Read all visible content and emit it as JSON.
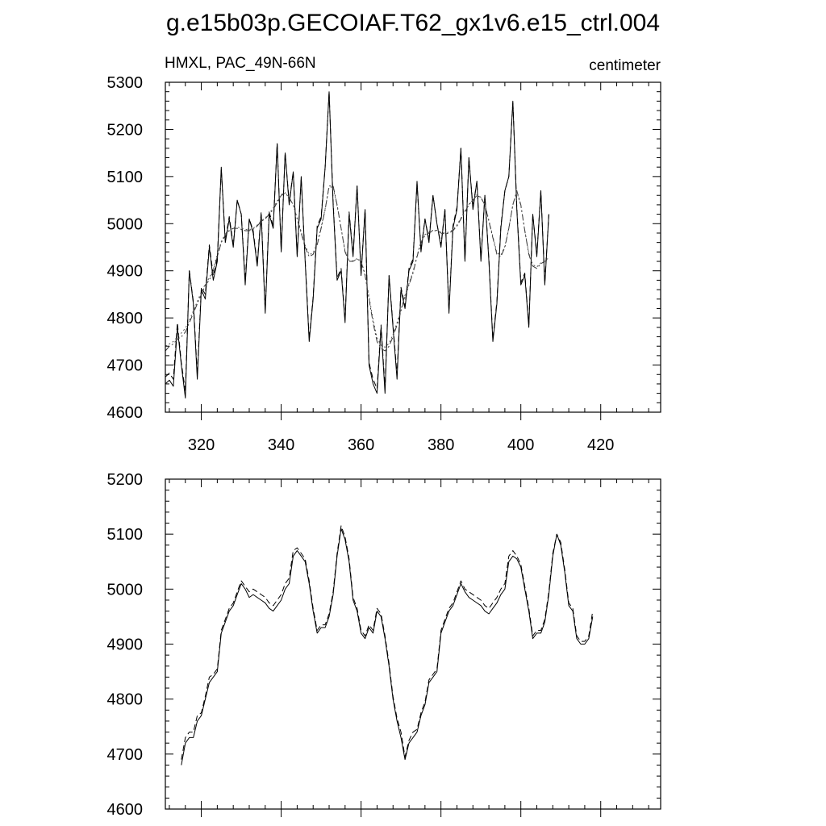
{
  "title": "g.e15b03p.GECOIAF.T62_gx1v6.e15_ctrl.004",
  "chart_data": [
    {
      "type": "line",
      "panel": "top",
      "left_label": "HMXL, PAC_49N-66N",
      "right_label": "centimeter",
      "xlim": [
        311,
        435
      ],
      "ylim": [
        4600,
        5300
      ],
      "xticks": [
        320,
        340,
        360,
        380,
        400,
        420
      ],
      "yticks": [
        4600,
        4700,
        4800,
        4900,
        5000,
        5100,
        5200,
        5300
      ],
      "x_start": 311,
      "series": [
        {
          "style": "solid",
          "color": "#000000",
          "values": [
            4660,
            4668,
            4655,
            4780,
            4700,
            4630,
            4900,
            4830,
            4670,
            4860,
            4840,
            4950,
            4880,
            4920,
            5120,
            4960,
            5010,
            4950,
            5050,
            5020,
            4870,
            5010,
            4980,
            4910,
            5020,
            4810,
            5020,
            4990,
            5170,
            4940,
            5150,
            5040,
            5110,
            4930,
            5100,
            4920,
            4750,
            4840,
            4990,
            5010,
            5120,
            5280,
            5040,
            4880,
            4900,
            4790,
            5020,
            4930,
            5080,
            4890,
            5030,
            4700,
            4660,
            4640,
            4780,
            4640,
            4890,
            4780,
            4670,
            4860,
            4820,
            4900,
            4920,
            5090,
            4940,
            5010,
            4960,
            5060,
            5000,
            4950,
            5030,
            4810,
            4990,
            5030,
            5160,
            4920,
            5140,
            5030,
            5090,
            4920,
            5060,
            4920,
            4750,
            4830,
            4990,
            5070,
            5100,
            5260,
            5030,
            4870,
            4890,
            4780,
            5020,
            4930,
            5070,
            4870,
            5020
          ],
          "offset": 0
        },
        {
          "style": "dashed",
          "color": "#000000",
          "values": [
            4675,
            4683,
            4670,
            4790,
            4705,
            4645,
            4900,
            4835,
            4680,
            4865,
            4850,
            4955,
            4890,
            4925,
            5115,
            4965,
            5015,
            4955,
            5050,
            5020,
            4880,
            5010,
            4985,
            4915,
            5025,
            4815,
            5025,
            4995,
            5170,
            4945,
            5150,
            5045,
            5110,
            4935,
            5095,
            4925,
            4755,
            4845,
            4995,
            5015,
            5120,
            5280,
            5045,
            4885,
            4905,
            4795,
            5025,
            4935,
            5080,
            4895,
            5030,
            4705,
            4670,
            4650,
            4785,
            4650,
            4890,
            4785,
            4680,
            4865,
            4825,
            4905,
            4925,
            5085,
            4945,
            5010,
            4965,
            5060,
            5000,
            4955,
            5030,
            4815,
            4995,
            5035,
            5160,
            4925,
            5140,
            5035,
            5090,
            4925,
            5060,
            4925,
            4755,
            4835,
            4995,
            5070,
            5100,
            5260,
            5035,
            4875,
            4895,
            4785,
            5020,
            4935,
            5070,
            4875,
            5020
          ]
        },
        {
          "style": "dashdot",
          "color": "#333333",
          "values": [
            4730,
            4740,
            4745,
            4755,
            4760,
            4770,
            4790,
            4810,
            4830,
            4850,
            4870,
            4880,
            4900,
            4930,
            4960,
            4975,
            4985,
            4990,
            4990,
            4988,
            4985,
            4985,
            4988,
            4995,
            5005,
            5010,
            5020,
            5030,
            5045,
            5060,
            5065,
            5055,
            5040,
            5010,
            4980,
            4950,
            4930,
            4935,
            4955,
            4990,
            5030,
            5080,
            5080,
            5040,
            4990,
            4940,
            4920,
            4920,
            4925,
            4920,
            4890,
            4840,
            4790,
            4750,
            4735,
            4730,
            4740,
            4760,
            4785,
            4815,
            4845,
            4870,
            4895,
            4930,
            4960,
            4975,
            4980,
            4985,
            4985,
            4980,
            4978,
            4980,
            4985,
            4995,
            5010,
            5025,
            5040,
            5050,
            5060,
            5055,
            5040,
            5005,
            4970,
            4935,
            4930,
            4950,
            4990,
            5040,
            5070,
            5040,
            4985,
            4935,
            4910,
            4905,
            4915,
            4920,
            4925
          ]
        },
        {
          "style": "dotted",
          "color": "#555555",
          "values": [
            4740,
            4745,
            4750,
            4760,
            4768,
            4778,
            4795,
            4815,
            4835,
            4855,
            4872,
            4885,
            4905,
            4935,
            4962,
            4978,
            4988,
            4992,
            4993,
            4990,
            4988,
            4987,
            4990,
            4997,
            5006,
            5012,
            5022,
            5033,
            5048,
            5062,
            5066,
            5056,
            5040,
            5012,
            4983,
            4954,
            4934,
            4938,
            4958,
            4992,
            5032,
            5078,
            5077,
            5038,
            4990,
            4942,
            4922,
            4921,
            4926,
            4921,
            4893,
            4845,
            4797,
            4758,
            4742,
            4738,
            4746,
            4765,
            4790,
            4818,
            4848,
            4873,
            4898,
            4932,
            4962,
            4977,
            4982,
            4986,
            4986,
            4982,
            4980,
            4982,
            4987,
            4997,
            5012,
            5027,
            5041,
            5051,
            5061,
            5056,
            5041,
            5007,
            4973,
            4938,
            4933,
            4952,
            4991,
            5040,
            5068,
            5038,
            4985,
            4937,
            4913,
            4908,
            4917,
            4922,
            4927
          ]
        }
      ]
    },
    {
      "type": "line",
      "panel": "bottom",
      "xlim": [
        311,
        435
      ],
      "ylim": [
        4600,
        5200
      ],
      "xticks": [
        320,
        340,
        360,
        380,
        400,
        420
      ],
      "yticks": [
        4600,
        4700,
        4800,
        4900,
        5000,
        5100,
        5200
      ],
      "x_start": 315,
      "series": [
        {
          "style": "solid",
          "color": "#000000",
          "values": [
            4680,
            4720,
            4730,
            4730,
            4760,
            4770,
            4800,
            4830,
            4840,
            4850,
            4920,
            4940,
            4960,
            4970,
            4990,
            5010,
            5000,
            4985,
            4990,
            4985,
            4980,
            4975,
            4965,
            4960,
            4970,
            4980,
            5000,
            5010,
            5060,
            5070,
            5060,
            5050,
            5010,
            4960,
            4920,
            4930,
            4930,
            4950,
            4990,
            5060,
            5110,
            5090,
            5050,
            4980,
            4960,
            4920,
            4910,
            4930,
            4920,
            4960,
            4950,
            4910,
            4860,
            4800,
            4760,
            4730,
            4690,
            4720,
            4730,
            4740,
            4770,
            4790,
            4830,
            4840,
            4850,
            4920,
            4940,
            4960,
            4970,
            4990,
            5010,
            4995,
            4985,
            4980,
            4975,
            4970,
            4960,
            4955,
            4965,
            4975,
            4990,
            5000,
            5050,
            5060,
            5055,
            5040,
            5000,
            4960,
            4910,
            4920,
            4920,
            4940,
            4990,
            5060,
            5100,
            5080,
            5030,
            4970,
            4960,
            4910,
            4900,
            4900,
            4910,
            4950
          ]
        },
        {
          "style": "dashed",
          "color": "#000000",
          "values": [
            4690,
            4730,
            4740,
            4740,
            4770,
            4775,
            4805,
            4840,
            4845,
            4855,
            4925,
            4945,
            4965,
            4975,
            4995,
            5015,
            5005,
            4995,
            5000,
            4995,
            4990,
            4985,
            4975,
            4970,
            4980,
            4990,
            5010,
            5020,
            5070,
            5075,
            5065,
            5055,
            5015,
            4965,
            4925,
            4935,
            4935,
            4955,
            4995,
            5065,
            5115,
            5095,
            5055,
            4985,
            4965,
            4925,
            4915,
            4935,
            4925,
            4965,
            4955,
            4915,
            4865,
            4805,
            4765,
            4740,
            4695,
            4725,
            4740,
            4745,
            4775,
            4795,
            4835,
            4845,
            4855,
            4925,
            4945,
            4965,
            4975,
            4995,
            5015,
            5000,
            4995,
            4990,
            4985,
            4980,
            4970,
            4965,
            4975,
            4985,
            5000,
            5010,
            5060,
            5070,
            5060,
            5045,
            5005,
            4965,
            4915,
            4925,
            4925,
            4945,
            4995,
            5065,
            5100,
            5085,
            5035,
            4975,
            4965,
            4915,
            4905,
            4905,
            4915,
            4960
          ]
        }
      ]
    }
  ]
}
